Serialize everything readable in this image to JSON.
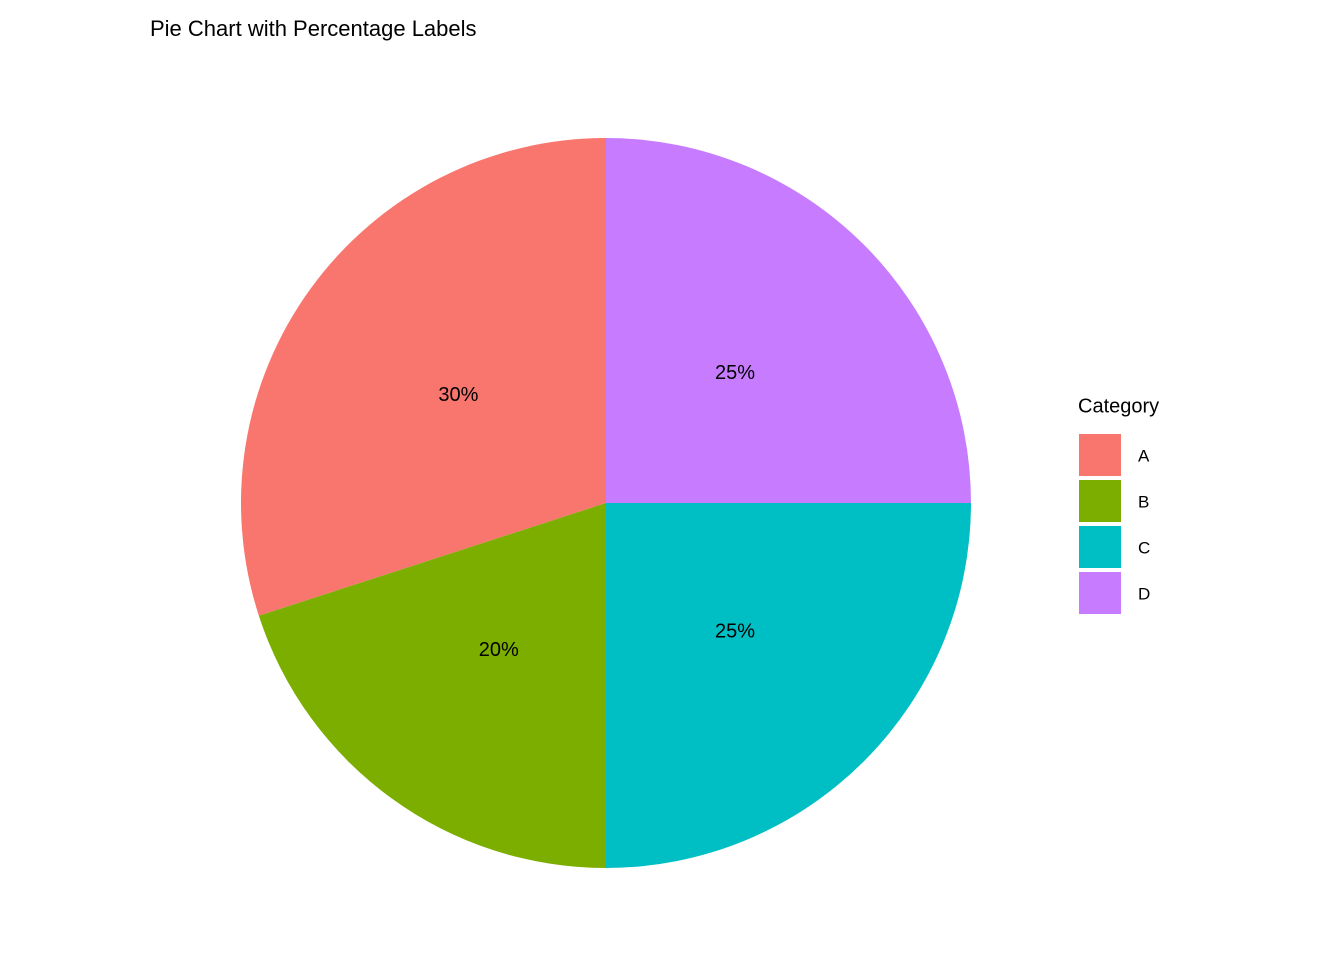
{
  "chart_data": {
    "type": "pie",
    "title": "Pie Chart with Percentage Labels",
    "categories": [
      "A",
      "B",
      "C",
      "D"
    ],
    "values": [
      30,
      20,
      25,
      25
    ],
    "value_labels": [
      "30%",
      "20%",
      "25%",
      "25%"
    ],
    "colors": [
      "#F8766D",
      "#7CAE00",
      "#00BFC4",
      "#C77CFF"
    ],
    "legend_title": "Category",
    "legend": "right"
  }
}
